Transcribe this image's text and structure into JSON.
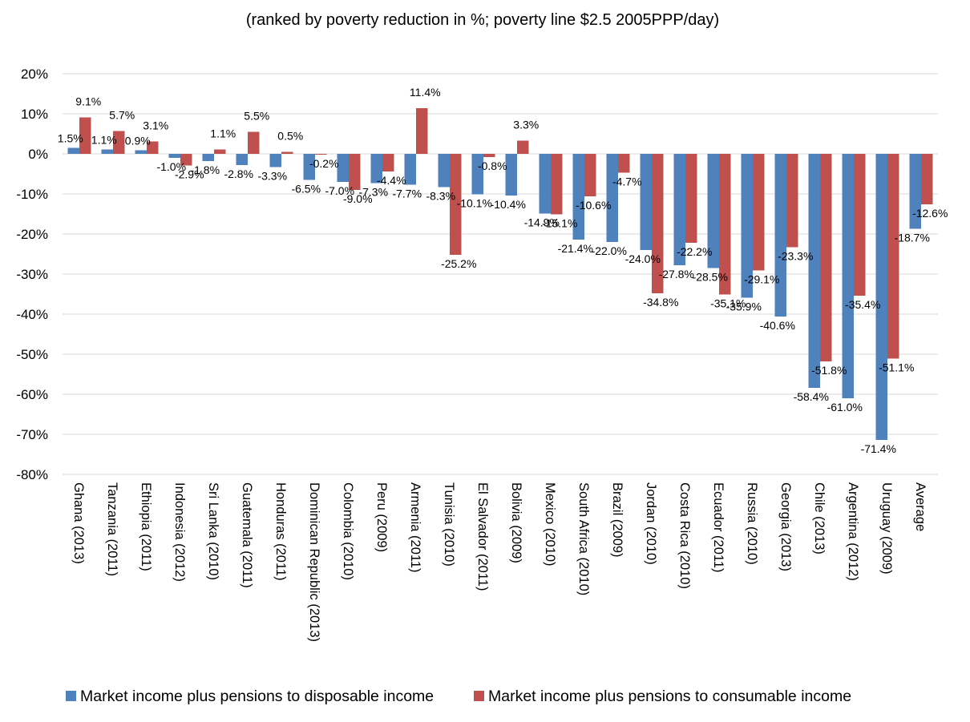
{
  "chart_data": {
    "type": "bar",
    "title": "(ranked by poverty reduction in %; poverty line $2.5  2005PPP/day)",
    "xlabel": "",
    "ylabel": "",
    "ylim": [
      -80,
      20
    ],
    "yticks": [
      20,
      10,
      0,
      -10,
      -20,
      -30,
      -40,
      -50,
      -60,
      -70,
      -80
    ],
    "ytick_labels": [
      "20%",
      "10%",
      "0%",
      "-10%",
      "-20%",
      "-30%",
      "-40%",
      "-50%",
      "-60%",
      "-70%",
      "-80%"
    ],
    "grid": true,
    "legend_position": "bottom",
    "categories": [
      "Ghana (2013)",
      "Tanzania (2011)",
      "Ethiopia (2011)",
      "Indonesia (2012)",
      "Sri Lanka (2010)",
      "Guatemala (2011)",
      "Honduras (2011)",
      "Dominican Republic (2013)",
      "Colombia (2010)",
      "Peru (2009)",
      "Armenia (2011)",
      "Tunisia (2010)",
      "El Salvador (2011)",
      "Bolivia (2009)",
      "Mexico (2010)",
      "South Africa (2010)",
      "Brazil (2009)",
      "Jordan (2010)",
      "Costa Rica (2010)",
      "Ecuador (2011)",
      "Russia (2010)",
      "Georgia (2013)",
      "Chile (2013)",
      "Argentina (2012)",
      "Uruguay (2009)",
      "Average"
    ],
    "series": [
      {
        "name": "Market income plus pensions to disposable income",
        "color": "#4F81BD",
        "values": [
          1.5,
          1.1,
          0.9,
          -1.0,
          -1.8,
          -2.8,
          -3.3,
          -6.5,
          -7.0,
          -7.3,
          -7.7,
          -8.3,
          -10.1,
          -10.4,
          -14.9,
          -21.4,
          -22.0,
          -24.0,
          -27.8,
          -28.5,
          -35.9,
          -40.6,
          -58.4,
          -61.0,
          -71.4,
          -18.7
        ],
        "labels": [
          "1.5%",
          "1.1%",
          "0.9%",
          "-1.0%",
          "-1.8%",
          "-2.8%",
          "-3.3%",
          "-6.5%",
          "-7.0%",
          "-7.3%",
          "-7.7%",
          "-8.3%",
          "-10.1%",
          "-10.4%",
          "-14.9%",
          "-21.4%",
          "-22.0%",
          "-24.0%",
          "-27.8%",
          "-28.5%",
          "-35.9%",
          "-40.6%",
          "-58.4%",
          "-61.0%",
          "-71.4%",
          "-18.7%"
        ]
      },
      {
        "name": "Market income plus pensions to consumable income",
        "color": "#C0504D",
        "values": [
          9.1,
          5.7,
          3.1,
          -2.9,
          1.1,
          5.5,
          0.5,
          -0.2,
          -9.0,
          -4.4,
          11.4,
          -25.2,
          -0.8,
          3.3,
          -15.1,
          -10.6,
          -4.7,
          -34.8,
          -22.2,
          -35.1,
          -29.1,
          -23.3,
          -51.8,
          -35.4,
          -51.1,
          -12.6
        ],
        "labels": [
          "9.1%",
          "5.7%",
          "3.1%",
          "-2.9%",
          "1.1%",
          "5.5%",
          "0.5%",
          "-0.2%",
          "-9.0%",
          "-4.4%",
          "11.4%",
          "-25.2%",
          "-0.8%",
          "3.3%",
          "-15.1%",
          "-10.6%",
          "-4.7%",
          "-34.8%",
          "-22.2%",
          "-35.1%",
          "-29.1%",
          "-23.3%",
          "-51.8%",
          "-35.4%",
          "-51.1%",
          "-12.6%"
        ]
      }
    ]
  }
}
